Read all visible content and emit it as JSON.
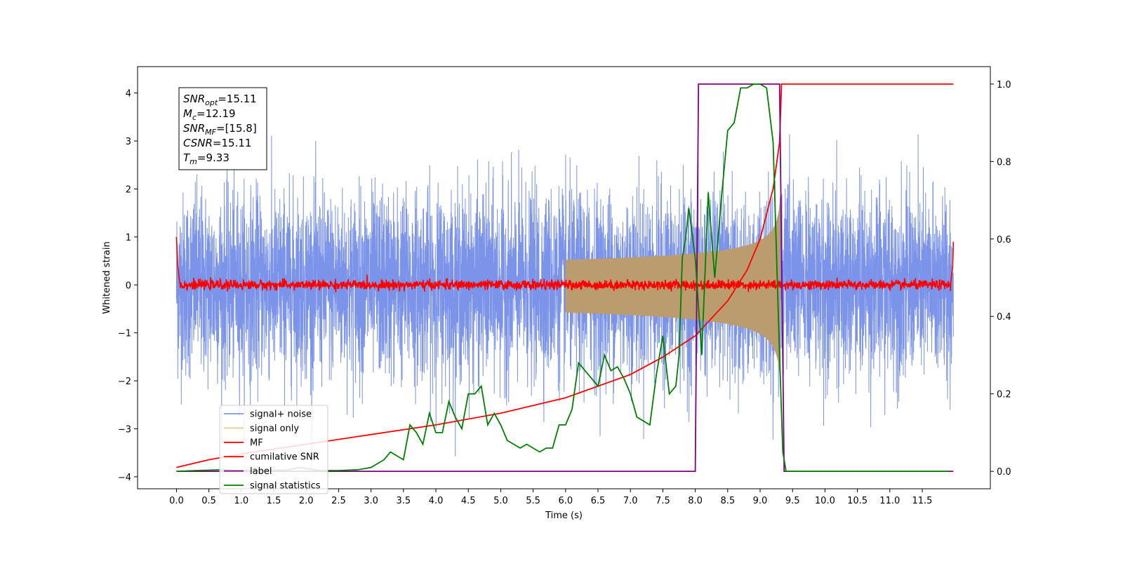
{
  "chart_data": {
    "type": "line",
    "title": "",
    "xlabel": "Time (s)",
    "ylabel": "Whitened strain",
    "xlim": [
      -0.6,
      12.55
    ],
    "ylim": [
      -4.25,
      4.55
    ],
    "y2lim": [
      -0.045,
      1.045
    ],
    "xticks": [
      0.0,
      0.5,
      1.0,
      1.5,
      2.0,
      2.5,
      3.0,
      3.5,
      4.0,
      4.5,
      5.0,
      5.5,
      6.0,
      6.5,
      7.0,
      7.5,
      8.0,
      8.5,
      9.0,
      9.5,
      10.0,
      10.5,
      11.0,
      11.5
    ],
    "xtick_labels": [
      "0.0",
      "0.5",
      "1.0",
      "1.5",
      "2.0",
      "2.5",
      "3.0",
      "3.5",
      "4.0",
      "4.5",
      "5.0",
      "5.5",
      "6.0",
      "6.5",
      "7.0",
      "7.5",
      "8.0",
      "8.5",
      "9.0",
      "9.5",
      "10.0",
      "10.5",
      "11.0",
      "11.5"
    ],
    "yticks": [
      -4,
      -3,
      -2,
      -1,
      0,
      1,
      2,
      3,
      4
    ],
    "ytick_labels": [
      "−4",
      "−3",
      "−2",
      "−1",
      "0",
      "1",
      "2",
      "3",
      "4"
    ],
    "y2ticks": [
      0.0,
      0.2,
      0.4,
      0.6,
      0.8,
      1.0
    ],
    "y2tick_labels": [
      "0.0",
      "0.2",
      "0.4",
      "0.6",
      "0.8",
      "1.0"
    ],
    "grid": false,
    "legend_position": "lower-left",
    "annotation": [
      {
        "sym": "SNR",
        "sub": "opt",
        "value": "=15.11"
      },
      {
        "sym": "M",
        "sub": "c",
        "value": "=12.19"
      },
      {
        "sym": "SNR",
        "sub": "MF",
        "value": "=[15.8]"
      },
      {
        "sym": "CSNR",
        "sub": "",
        "value": "=15.11"
      },
      {
        "sym": "T",
        "sub": "m",
        "value": "=9.33"
      }
    ],
    "series": [
      {
        "name": "signal+ noise",
        "axis": "left",
        "color": "#7b93e8",
        "style": "noise",
        "sigma": 0.95,
        "t_start": 0.0,
        "t_end": 11.98,
        "envelope_max": [
          [
            0.0,
            1.6
          ],
          [
            1.0,
            2.4
          ],
          [
            2.0,
            2.6
          ],
          [
            3.0,
            2.5
          ],
          [
            4.0,
            2.8
          ],
          [
            5.0,
            2.4
          ],
          [
            6.0,
            2.5
          ],
          [
            7.0,
            2.4
          ],
          [
            8.0,
            2.6
          ],
          [
            8.5,
            2.7
          ],
          [
            9.0,
            2.8
          ],
          [
            9.3,
            3.0
          ],
          [
            10.0,
            2.5
          ],
          [
            11.0,
            2.6
          ],
          [
            11.98,
            2.5
          ]
        ]
      },
      {
        "name": "signal only",
        "axis": "left",
        "color": "#e8c98e",
        "fill": "#bb9c6e",
        "style": "chirp",
        "t_coalescence": 9.33,
        "amplitude_at_9_3": 1.7,
        "t_start": 6.0
      },
      {
        "name": "MF",
        "axis": "left",
        "color": "#ff0000",
        "style": "flat-noise",
        "sigma": 0.05,
        "x": [
          0.0,
          0.02,
          0.05,
          11.94,
          11.97,
          11.98
        ],
        "y": [
          1.0,
          0.4,
          0.05,
          0.05,
          0.4,
          0.9
        ]
      },
      {
        "name": "cumilative SNR",
        "axis": "right",
        "color": "#ff0000",
        "x": [
          0.0,
          0.5,
          1.0,
          2.0,
          3.0,
          4.0,
          5.0,
          6.0,
          7.0,
          7.5,
          8.0,
          8.5,
          8.8,
          9.0,
          9.2,
          9.3,
          9.33,
          11.98
        ],
        "y": [
          0.01,
          0.03,
          0.045,
          0.07,
          0.095,
          0.12,
          0.15,
          0.19,
          0.25,
          0.295,
          0.35,
          0.44,
          0.52,
          0.6,
          0.73,
          0.85,
          1.0,
          1.0
        ]
      },
      {
        "name": "label",
        "axis": "right",
        "color": "#800080",
        "x": [
          0.0,
          8.0,
          8.05,
          9.3,
          9.37,
          11.98
        ],
        "y": [
          0.0,
          0.0,
          1.0,
          1.0,
          0.0,
          0.0
        ]
      },
      {
        "name": "signal statistics",
        "axis": "right",
        "color": "#008000",
        "x": [
          0.0,
          0.3,
          0.7,
          1.2,
          1.7,
          1.9,
          2.2,
          2.5,
          2.8,
          3.0,
          3.2,
          3.3,
          3.4,
          3.5,
          3.6,
          3.7,
          3.8,
          3.9,
          4.0,
          4.1,
          4.2,
          4.3,
          4.4,
          4.5,
          4.6,
          4.7,
          4.8,
          4.9,
          5.0,
          5.1,
          5.2,
          5.3,
          5.4,
          5.5,
          5.6,
          5.7,
          5.8,
          5.9,
          6.0,
          6.1,
          6.2,
          6.3,
          6.4,
          6.5,
          6.6,
          6.7,
          6.8,
          6.9,
          7.0,
          7.1,
          7.2,
          7.3,
          7.4,
          7.5,
          7.6,
          7.7,
          7.75,
          7.8,
          7.85,
          7.9,
          8.0,
          8.1,
          8.2,
          8.3,
          8.4,
          8.5,
          8.6,
          8.7,
          8.8,
          8.9,
          9.0,
          9.1,
          9.2,
          9.3,
          9.35,
          9.4,
          9.5,
          11.9
        ],
        "y": [
          0.0,
          0.002,
          0.004,
          0.002,
          0.003,
          0.01,
          0.002,
          0.002,
          0.004,
          0.01,
          0.03,
          0.05,
          0.04,
          0.03,
          0.12,
          0.1,
          0.07,
          0.15,
          0.1,
          0.1,
          0.18,
          0.14,
          0.11,
          0.2,
          0.2,
          0.22,
          0.12,
          0.15,
          0.12,
          0.08,
          0.07,
          0.06,
          0.07,
          0.06,
          0.05,
          0.06,
          0.06,
          0.12,
          0.12,
          0.16,
          0.28,
          0.26,
          0.24,
          0.22,
          0.3,
          0.26,
          0.27,
          0.24,
          0.2,
          0.14,
          0.13,
          0.12,
          0.25,
          0.35,
          0.2,
          0.22,
          0.3,
          0.55,
          0.6,
          0.68,
          0.55,
          0.3,
          0.72,
          0.5,
          0.7,
          0.88,
          0.9,
          0.99,
          0.99,
          1.0,
          1.0,
          0.99,
          0.85,
          0.3,
          0.05,
          0.0,
          0.0,
          0.0
        ]
      }
    ]
  }
}
